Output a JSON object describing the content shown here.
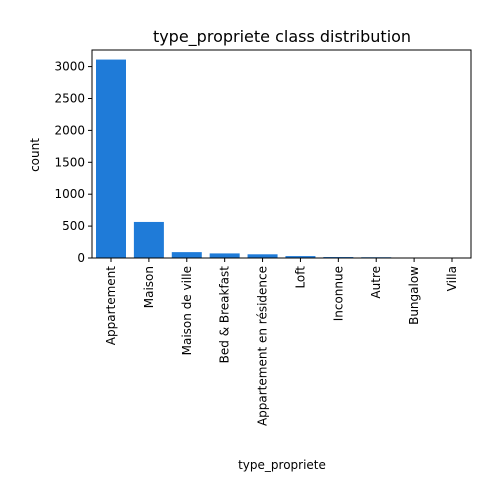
{
  "chart_data": {
    "type": "bar",
    "title": "type_propriete class distribution",
    "xlabel": "type_propriete",
    "ylabel": "count",
    "categories": [
      "Appartement",
      "Maison",
      "Maison de ville",
      "Bed & Breakfast",
      "Appartement en résidence",
      "Loft",
      "Inconnue",
      "Autre",
      "Bungalow",
      "Villa"
    ],
    "values": [
      3110,
      565,
      92,
      72,
      58,
      30,
      15,
      12,
      4,
      2
    ],
    "ylim": [
      0,
      3260
    ],
    "yticks": [
      0,
      500,
      1000,
      1500,
      2000,
      2500,
      3000
    ],
    "grid": false,
    "legend": "none",
    "bar_color": "#1f7bd8"
  }
}
